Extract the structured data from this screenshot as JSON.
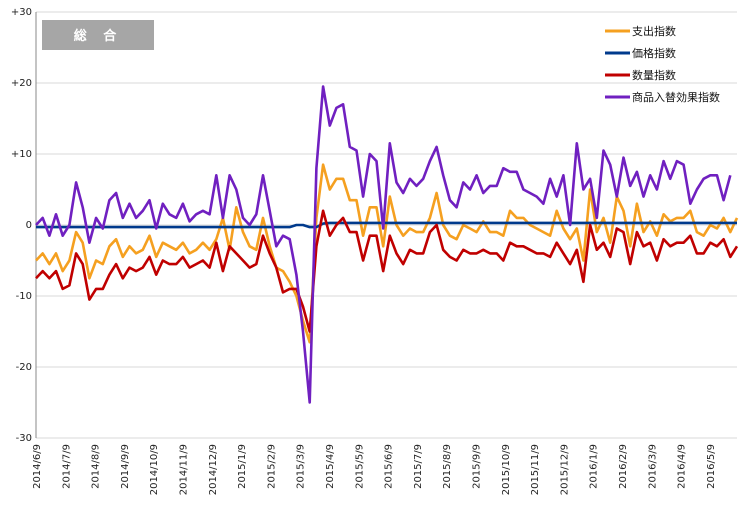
{
  "chart_data": {
    "type": "line",
    "title": "総 合",
    "y_ticks": [
      "+30",
      "+20",
      "+10",
      "0",
      "-10",
      "-20",
      "-30"
    ],
    "ylim": [
      -30,
      30
    ],
    "grid": "horizontal",
    "legend_position": "top-right",
    "x_labels": [
      "2014/6/9",
      "2014/7/9",
      "2014/8/9",
      "2014/9/9",
      "2014/10/9",
      "2014/11/9",
      "2014/12/9",
      "2015/1/9",
      "2015/2/9",
      "2015/3/9",
      "2015/4/9",
      "2015/5/9",
      "2015/6/9",
      "2015/7/9",
      "2015/8/9",
      "2015/9/9",
      "2015/10/9",
      "2015/11/9",
      "2015/12/9",
      "2016/1/9",
      "2016/2/9",
      "2016/3/9",
      "2016/4/9",
      "2016/5/9"
    ],
    "series": [
      {
        "name": "支出指数",
        "color": "#f5a020",
        "values": [
          -5,
          -4,
          -5.5,
          -4,
          -6.5,
          -5,
          -1,
          -2.5,
          -7.5,
          -5,
          -5.5,
          -3,
          -2,
          -4.5,
          -3,
          -4,
          -3.5,
          -1.5,
          -4.5,
          -2.5,
          -3,
          -3.5,
          -2.5,
          -4,
          -3.5,
          -2.5,
          -3.5,
          -2,
          1,
          -3.5,
          2.5,
          -1,
          -3,
          -3.5,
          1,
          -3,
          -6,
          -6.5,
          -8,
          -10,
          -13.5,
          -16.5,
          1,
          8.5,
          5,
          6.5,
          6.5,
          3.5,
          3.5,
          -1.5,
          2.5,
          2.5,
          -3,
          4,
          0,
          -1.5,
          -0.5,
          -1,
          -1,
          1,
          4.5,
          0,
          -1.5,
          -2,
          0,
          -0.5,
          -1,
          0.5,
          -1,
          -1,
          -1.5,
          2,
          1,
          1,
          0,
          -0.5,
          -1,
          -1.5,
          2,
          -0.5,
          -2,
          -0.5,
          -5,
          5,
          -1,
          1,
          -2.5,
          4,
          2,
          -3,
          3,
          -1,
          0.5,
          -1.5,
          1.5,
          0.5,
          1,
          1,
          2,
          -1,
          -1.5,
          0,
          -0.5,
          1,
          -1,
          1
        ]
      },
      {
        "name": "価格指数",
        "color": "#003a8c",
        "values": [
          -0.3,
          -0.3,
          -0.3,
          -0.3,
          -0.3,
          -0.3,
          -0.3,
          -0.3,
          -0.3,
          -0.3,
          -0.3,
          -0.3,
          -0.3,
          -0.3,
          -0.3,
          -0.3,
          -0.3,
          -0.3,
          -0.3,
          -0.3,
          -0.3,
          -0.3,
          -0.3,
          -0.3,
          -0.3,
          -0.3,
          -0.3,
          -0.3,
          -0.3,
          -0.3,
          -0.3,
          -0.3,
          -0.3,
          -0.3,
          -0.3,
          -0.3,
          -0.3,
          -0.3,
          -0.3,
          0,
          0,
          -0.3,
          -0.3,
          0.2,
          0.3,
          0.3,
          0.3,
          0.3,
          0.3,
          0.3,
          0.3,
          0.3,
          0.3,
          0.3,
          0.3,
          0.3,
          0.3,
          0.3,
          0.3,
          0.3,
          0.3,
          0.3,
          0.3,
          0.3,
          0.3,
          0.3,
          0.3,
          0.3,
          0.3,
          0.3,
          0.3,
          0.3,
          0.3,
          0.3,
          0.3,
          0.3,
          0.3,
          0.3,
          0.3,
          0.3,
          0.3,
          0.3,
          0.3,
          0.3,
          0.3,
          0.3,
          0.3,
          0.3,
          0.3,
          0.3,
          0.3,
          0.3,
          0.3,
          0.3,
          0.3,
          0.3,
          0.3,
          0.3,
          0.3,
          0.3,
          0.3,
          0.3,
          0.3,
          0.3,
          0.3,
          0.3
        ]
      },
      {
        "name": "数量指数",
        "color": "#c00000",
        "values": [
          -7.5,
          -6.5,
          -7.5,
          -6.5,
          -9,
          -8.5,
          -4,
          -5.5,
          -10.5,
          -9,
          -9,
          -7,
          -5.5,
          -7.5,
          -6,
          -6.5,
          -6,
          -4.5,
          -7,
          -5,
          -5.5,
          -5.5,
          -4.5,
          -6,
          -5.5,
          -5,
          -6,
          -2.5,
          -6.5,
          -3,
          -4,
          -5,
          -6,
          -5.5,
          -1.5,
          -4,
          -6,
          -9.5,
          -9,
          -9,
          -11.5,
          -15,
          -3,
          2,
          -1.5,
          0,
          1,
          -1,
          -1,
          -5,
          -1.5,
          -1.5,
          -6.5,
          -1.5,
          -4,
          -5.5,
          -3.5,
          -4,
          -4,
          -1,
          0,
          -3.5,
          -4.5,
          -5,
          -3.5,
          -4,
          -4,
          -3.5,
          -4,
          -4,
          -5,
          -2.5,
          -3,
          -3,
          -3.5,
          -4,
          -4,
          -4.5,
          -2.5,
          -4,
          -5.5,
          -3.5,
          -8,
          0,
          -3.5,
          -2.5,
          -4.5,
          -0.5,
          -1,
          -5.5,
          -1,
          -3,
          -2.5,
          -5,
          -2,
          -3,
          -2.5,
          -2.5,
          -1.5,
          -4,
          -4,
          -2.5,
          -3,
          -2,
          -4.5,
          -3
        ]
      },
      {
        "name": "商品入替効果指数",
        "color": "#7020c0",
        "values": [
          0,
          1,
          -1.5,
          1.5,
          -1.5,
          0,
          6,
          2.5,
          -2.5,
          1,
          -0.5,
          3.5,
          4.5,
          1,
          3,
          1,
          2,
          3.5,
          -0.5,
          3,
          1.5,
          1,
          3,
          0.5,
          1.5,
          2,
          1.5,
          7,
          1,
          7,
          5,
          1,
          0,
          1.5,
          7,
          2,
          -3,
          -1.5,
          -2,
          -7,
          -15,
          -25,
          8,
          19.5,
          14,
          16.5,
          17,
          11,
          10.5,
          4,
          10,
          9,
          -0.5,
          11.5,
          6,
          4.5,
          6.5,
          5.5,
          6.5,
          9,
          11,
          7,
          3.5,
          2.5,
          6,
          5,
          7,
          4.5,
          5.5,
          5.5,
          8,
          7.5,
          7.5,
          5,
          4.5,
          4,
          3,
          6.5,
          4,
          7,
          0,
          11.5,
          5,
          6.5,
          1,
          10.5,
          8.5,
          4,
          9.5,
          5.5,
          7.5,
          4,
          7,
          5,
          9,
          6.5,
          9,
          8.5,
          3,
          5,
          6.5,
          7,
          7,
          3.5,
          7
        ]
      }
    ]
  }
}
